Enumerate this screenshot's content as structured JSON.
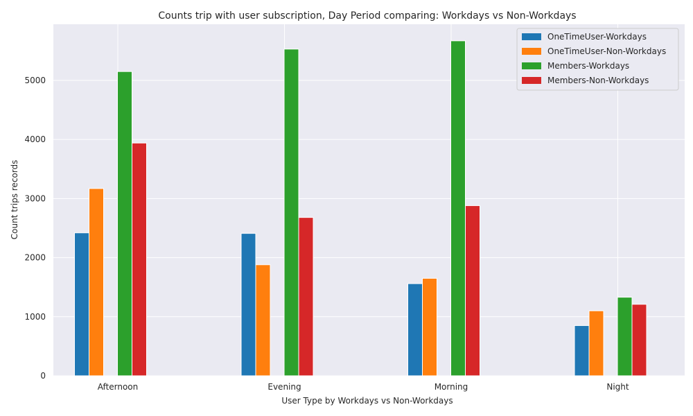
{
  "chart_data": {
    "type": "bar",
    "title": "Counts trip with user subscription, Day Period comparing: Workdays vs Non-Workdays",
    "xlabel": "User Type by Workdays vs Non-Workdays",
    "ylabel": "Count trips records",
    "categories": [
      "Afternoon",
      "Evening",
      "Morning",
      "Night"
    ],
    "yticks": [
      0,
      1000,
      2000,
      3000,
      4000,
      5000
    ],
    "ylim": [
      0,
      5950
    ],
    "grid": true,
    "legend_position": "top-right",
    "series": [
      {
        "name": "OneTimeUser-Workdays",
        "color": "#1f77b4",
        "values": [
          2420,
          2410,
          1560,
          850
        ]
      },
      {
        "name": "OneTimeUser-Non-Workdays",
        "color": "#ff7f0e",
        "values": [
          3170,
          1880,
          1650,
          1100
        ]
      },
      {
        "name": "Members-Workdays",
        "color": "#2ca02c",
        "values": [
          5150,
          5530,
          5670,
          1330
        ]
      },
      {
        "name": "Members-Non-Workdays",
        "color": "#d62728",
        "values": [
          3940,
          2680,
          2880,
          1210
        ]
      }
    ]
  }
}
